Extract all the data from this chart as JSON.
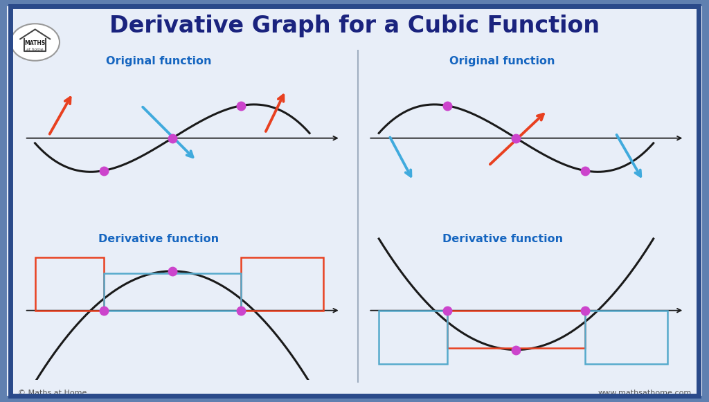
{
  "title": "Derivative Graph for a Cubic Function",
  "title_color": "#1a237e",
  "title_fontsize": 24,
  "bg_color": "#e8eef8",
  "panel_bg": "#f5f8ff",
  "border_outer": "#6080b0",
  "border_inner": "#2a4a8a",
  "label_color": "#1565C0",
  "curve_color": "#1a1a1a",
  "purple_dot": "#cc44cc",
  "orange_arrow": "#e84020",
  "blue_arrow": "#40aadd",
  "red_rect": "#e84020",
  "blue_rect": "#55aacc",
  "axis_color": "#1a1a1a",
  "orig_label": "Original function",
  "deriv_label": "Derivative function",
  "footer_left": "© Maths at Home",
  "footer_right": "www.mathsathome.com"
}
